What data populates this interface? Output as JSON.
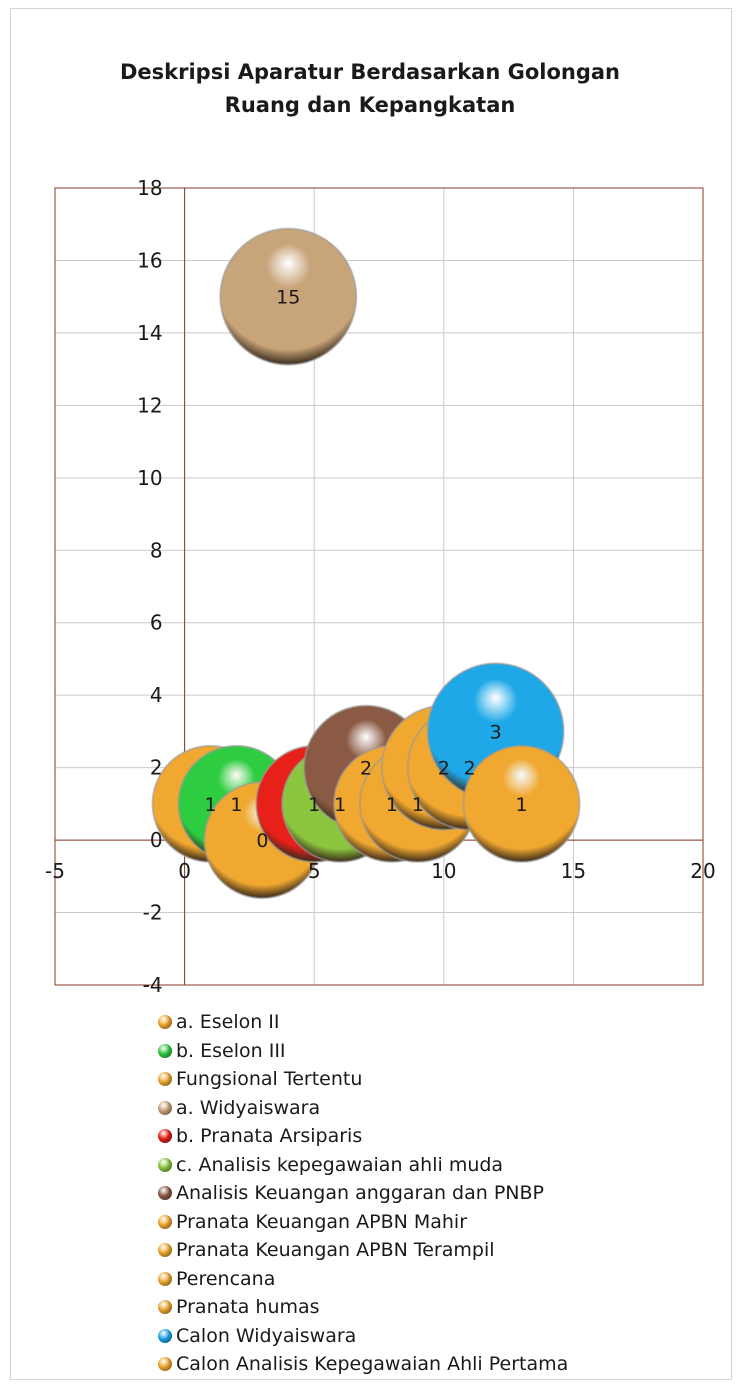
{
  "chart_data": {
    "type": "bubble",
    "title_lines": [
      "Deskripsi Aparatur Berdasarkan Golongan",
      "Ruang dan Kepangkatan"
    ],
    "xlim": [
      -5,
      20
    ],
    "ylim": [
      -4,
      18
    ],
    "x_ticks": [
      -5,
      0,
      5,
      10,
      15,
      20
    ],
    "y_ticks": [
      -4,
      -2,
      0,
      2,
      4,
      6,
      8,
      10,
      12,
      14,
      16,
      18
    ],
    "grid": true,
    "legend_position": "bottom",
    "series": [
      {
        "name": "a. Eselon II",
        "x": 1,
        "y": 1,
        "size": 1,
        "label": "1",
        "color": "#F0A830"
      },
      {
        "name": "b. Eselon III",
        "x": 2,
        "y": 1,
        "size": 1,
        "label": "1",
        "color": "#2ECC40"
      },
      {
        "name": "Fungsional Tertentu",
        "x": 3,
        "y": 0,
        "size": 0,
        "label": "0",
        "color": "#F0A830"
      },
      {
        "name": "a. Widyaiswara",
        "x": 4,
        "y": 15,
        "size": 15,
        "label": "15",
        "color": "#C8A47A"
      },
      {
        "name": "b. Pranata Arsiparis",
        "x": 5,
        "y": 1,
        "size": 1,
        "label": "1",
        "color": "#E8201A"
      },
      {
        "name": "c. Analisis kepegawaian ahli muda",
        "x": 6,
        "y": 1,
        "size": 1,
        "label": "1",
        "color": "#8CC63F"
      },
      {
        "name": "Analisis Keuangan anggaran dan PNBP",
        "x": 7,
        "y": 2,
        "size": 2,
        "label": "2",
        "color": "#8B5A44"
      },
      {
        "name": "Pranata Keuangan APBN Mahir",
        "x": 8,
        "y": 1,
        "size": 1,
        "label": "1",
        "color": "#F0A830"
      },
      {
        "name": "Pranata Keuangan APBN Terampil",
        "x": 9,
        "y": 1,
        "size": 1,
        "label": "1",
        "color": "#F0A830"
      },
      {
        "name": "Perencana",
        "x": 10,
        "y": 2,
        "size": 2,
        "label": "2",
        "color": "#F0A830"
      },
      {
        "name": "Pranata humas",
        "x": 11,
        "y": 2,
        "size": 2,
        "label": "2",
        "color": "#F0A830"
      },
      {
        "name": "Calon Widyaiswara",
        "x": 12,
        "y": 3,
        "size": 3,
        "label": "3",
        "color": "#1EA8E8"
      },
      {
        "name": "Calon Analisis Kepegawaian Ahli Pertama",
        "x": 13,
        "y": 1,
        "size": 1,
        "label": "1",
        "color": "#F0A830"
      }
    ]
  }
}
